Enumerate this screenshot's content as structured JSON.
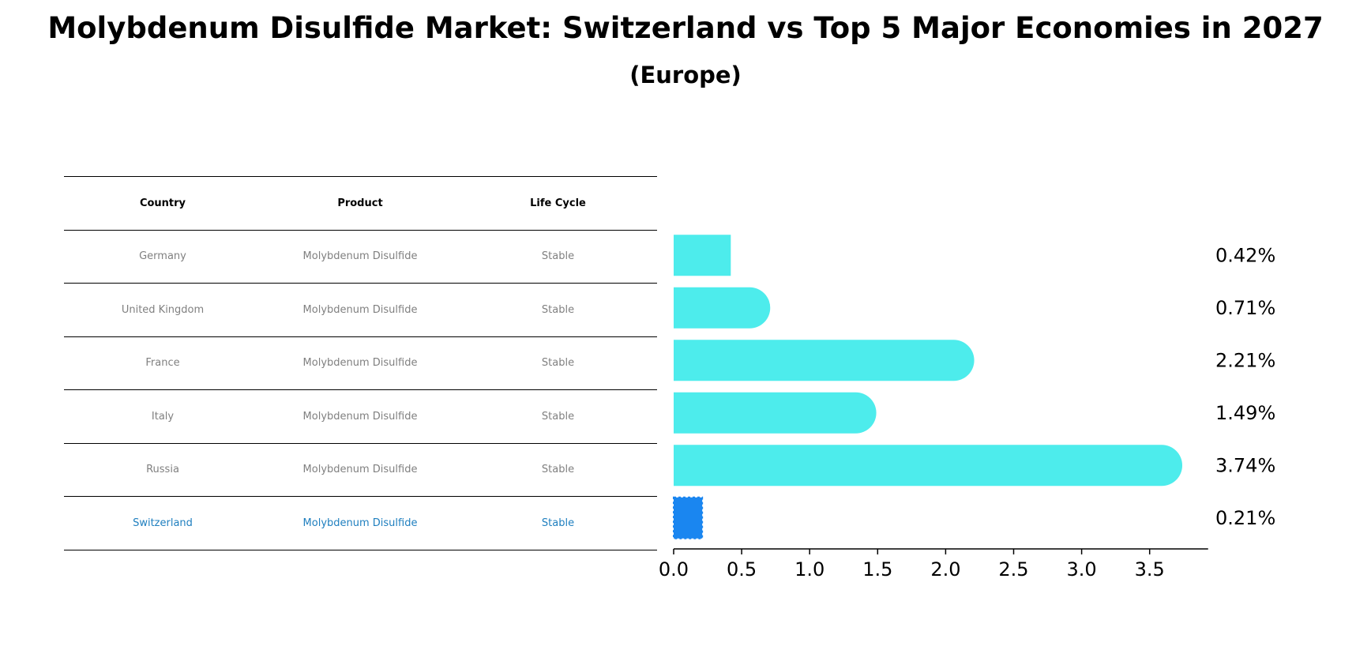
{
  "title": "Molybdenum Disulfide Market: Switzerland vs Top 5 Major Economies in 2027",
  "subtitle": "(Europe)",
  "table": {
    "headers": [
      "Country",
      "Product",
      "Life Cycle"
    ],
    "rows": [
      {
        "country": "Germany",
        "product": "Molybdenum Disulfide",
        "life_cycle": "Stable"
      },
      {
        "country": "United Kingdom",
        "product": "Molybdenum Disulfide",
        "life_cycle": "Stable"
      },
      {
        "country": "France",
        "product": "Molybdenum Disulfide",
        "life_cycle": "Stable"
      },
      {
        "country": "Italy",
        "product": "Molybdenum Disulfide",
        "life_cycle": "Stable"
      },
      {
        "country": "Russia",
        "product": "Molybdenum Disulfide",
        "life_cycle": "Stable"
      },
      {
        "country": "Switzerland",
        "product": "Molybdenum Disulfide",
        "life_cycle": "Stable"
      }
    ]
  },
  "chart_data": {
    "type": "bar",
    "orientation": "horizontal",
    "categories": [
      "Germany",
      "United Kingdom",
      "France",
      "Italy",
      "Russia",
      "Switzerland"
    ],
    "values": [
      0.42,
      0.71,
      2.21,
      1.49,
      3.74,
      0.21
    ],
    "data_labels": [
      "0.42%",
      "0.71%",
      "2.21%",
      "1.49%",
      "3.74%",
      "0.21%"
    ],
    "xlim": [
      0,
      3.93
    ],
    "xticks": [
      0.0,
      0.5,
      1.0,
      1.5,
      2.0,
      2.5,
      3.0,
      3.5
    ],
    "xtick_labels": [
      "0.0",
      "0.5",
      "1.0",
      "1.5",
      "2.0",
      "2.5",
      "3.0",
      "3.5"
    ],
    "bar_color": "#4DECEC",
    "highlight_color": "#1A86F0",
    "highlight_category": "Switzerland"
  }
}
